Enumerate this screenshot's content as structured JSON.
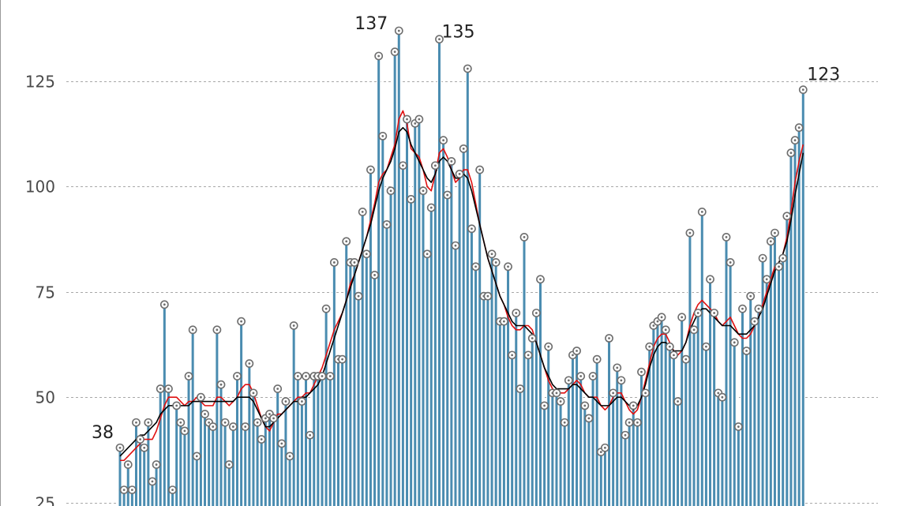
{
  "colors": {
    "bar": "#4a8cb0",
    "avg_short": "#e01010",
    "avg_long": "#000000",
    "grid": "#a8a8a8"
  },
  "chart_data": {
    "type": "bar",
    "title": "",
    "xlabel": "",
    "ylabel": "",
    "ylim": [
      25,
      140
    ],
    "yticks": [
      25,
      50,
      75,
      100,
      125
    ],
    "grid": true,
    "bar_markers": "circle",
    "values": [
      38,
      28,
      34,
      28,
      44,
      40,
      38,
      44,
      30,
      34,
      52,
      72,
      52,
      28,
      48,
      44,
      42,
      55,
      66,
      36,
      50,
      46,
      44,
      43,
      66,
      53,
      44,
      34,
      43,
      55,
      68,
      43,
      58,
      51,
      44,
      40,
      45,
      46,
      45,
      52,
      39,
      49,
      36,
      67,
      55,
      49,
      55,
      41,
      55,
      55,
      55,
      71,
      55,
      82,
      59,
      59,
      87,
      82,
      82,
      74,
      94,
      84,
      104,
      79,
      131,
      112,
      91,
      99,
      132,
      137,
      105,
      116,
      97,
      115,
      116,
      99,
      84,
      95,
      105,
      135,
      111,
      98,
      106,
      86,
      103,
      109,
      128,
      90,
      81,
      104,
      74,
      74,
      84,
      82,
      68,
      68,
      81,
      60,
      70,
      52,
      88,
      60,
      64,
      70,
      78,
      48,
      62,
      51,
      51,
      49,
      44,
      54,
      60,
      61,
      55,
      48,
      45,
      55,
      59,
      37,
      38,
      64,
      51,
      57,
      54,
      41,
      44,
      48,
      44,
      56,
      51,
      62,
      67,
      68,
      69,
      66,
      62,
      60,
      49,
      69,
      59,
      89,
      66,
      70,
      94,
      62,
      78,
      70,
      51,
      50,
      88,
      82,
      63,
      43,
      71,
      61,
      74,
      68,
      71,
      83,
      78,
      87,
      89,
      81,
      83,
      93,
      108,
      111,
      114,
      123
    ],
    "series": [
      {
        "name": "",
        "style": "red line",
        "values": [
          35,
          35,
          36,
          37,
          38,
          39,
          40,
          40,
          40,
          42,
          45,
          48,
          50,
          50,
          50,
          49,
          48,
          49,
          49,
          50,
          49,
          48,
          48,
          48,
          50,
          50,
          49,
          48,
          49,
          50,
          52,
          53,
          53,
          51,
          48,
          45,
          43,
          42,
          44,
          46,
          46,
          47,
          48,
          49,
          50,
          50,
          51,
          51,
          53,
          55,
          57,
          60,
          63,
          66,
          68,
          70,
          73,
          77,
          79,
          82,
          85,
          88,
          92,
          96,
          101,
          103,
          104,
          107,
          110,
          116,
          118,
          115,
          109,
          108,
          107,
          104,
          100,
          99,
          103,
          108,
          109,
          107,
          104,
          101,
          102,
          104,
          104,
          101,
          96,
          91,
          87,
          83,
          80,
          77,
          74,
          72,
          69,
          67,
          66,
          66,
          67,
          67,
          66,
          63,
          60,
          57,
          54,
          52,
          51,
          51,
          51,
          52,
          53,
          54,
          53,
          51,
          50,
          50,
          50,
          48,
          47,
          48,
          50,
          51,
          51,
          49,
          47,
          46,
          47,
          50,
          54,
          58,
          62,
          64,
          65,
          65,
          63,
          61,
          60,
          61,
          63,
          67,
          70,
          72,
          73,
          72,
          71,
          70,
          68,
          67,
          68,
          69,
          67,
          65,
          64,
          64,
          65,
          67,
          69,
          72,
          75,
          78,
          81,
          82,
          84,
          88,
          94,
          101,
          106,
          110
        ]
      },
      {
        "name": "",
        "style": "black line",
        "values": [
          36,
          37,
          38,
          39,
          40,
          41,
          41,
          42,
          43,
          44,
          46,
          47,
          48,
          48,
          48,
          48,
          48,
          48,
          49,
          49,
          49,
          49,
          49,
          49,
          49,
          49,
          49,
          49,
          49,
          50,
          50,
          50,
          50,
          49,
          47,
          45,
          43,
          43,
          44,
          45,
          46,
          47,
          48,
          49,
          49,
          50,
          50,
          51,
          52,
          53,
          55,
          58,
          61,
          64,
          67,
          70,
          73,
          76,
          79,
          82,
          85,
          88,
          91,
          95,
          99,
          102,
          104,
          106,
          109,
          113,
          114,
          113,
          110,
          108,
          106,
          104,
          102,
          101,
          103,
          106,
          107,
          106,
          104,
          102,
          102,
          103,
          102,
          99,
          95,
          91,
          87,
          83,
          80,
          77,
          74,
          72,
          70,
          68,
          67,
          67,
          67,
          66,
          65,
          63,
          60,
          57,
          55,
          53,
          52,
          52,
          52,
          52,
          53,
          53,
          52,
          51,
          50,
          50,
          49,
          48,
          48,
          48,
          49,
          50,
          50,
          49,
          48,
          47,
          48,
          50,
          53,
          57,
          60,
          62,
          63,
          63,
          62,
          61,
          61,
          61,
          63,
          66,
          68,
          70,
          71,
          71,
          70,
          69,
          68,
          67,
          67,
          67,
          66,
          65,
          65,
          65,
          66,
          67,
          69,
          71,
          74,
          77,
          80,
          82,
          84,
          87,
          92,
          98,
          103,
          108
        ]
      }
    ],
    "annotations": [
      {
        "index": 0,
        "text": "38"
      },
      {
        "index": 69,
        "text": "137"
      },
      {
        "index": 79,
        "text": "135"
      },
      {
        "index": 169,
        "text": "123"
      }
    ]
  }
}
